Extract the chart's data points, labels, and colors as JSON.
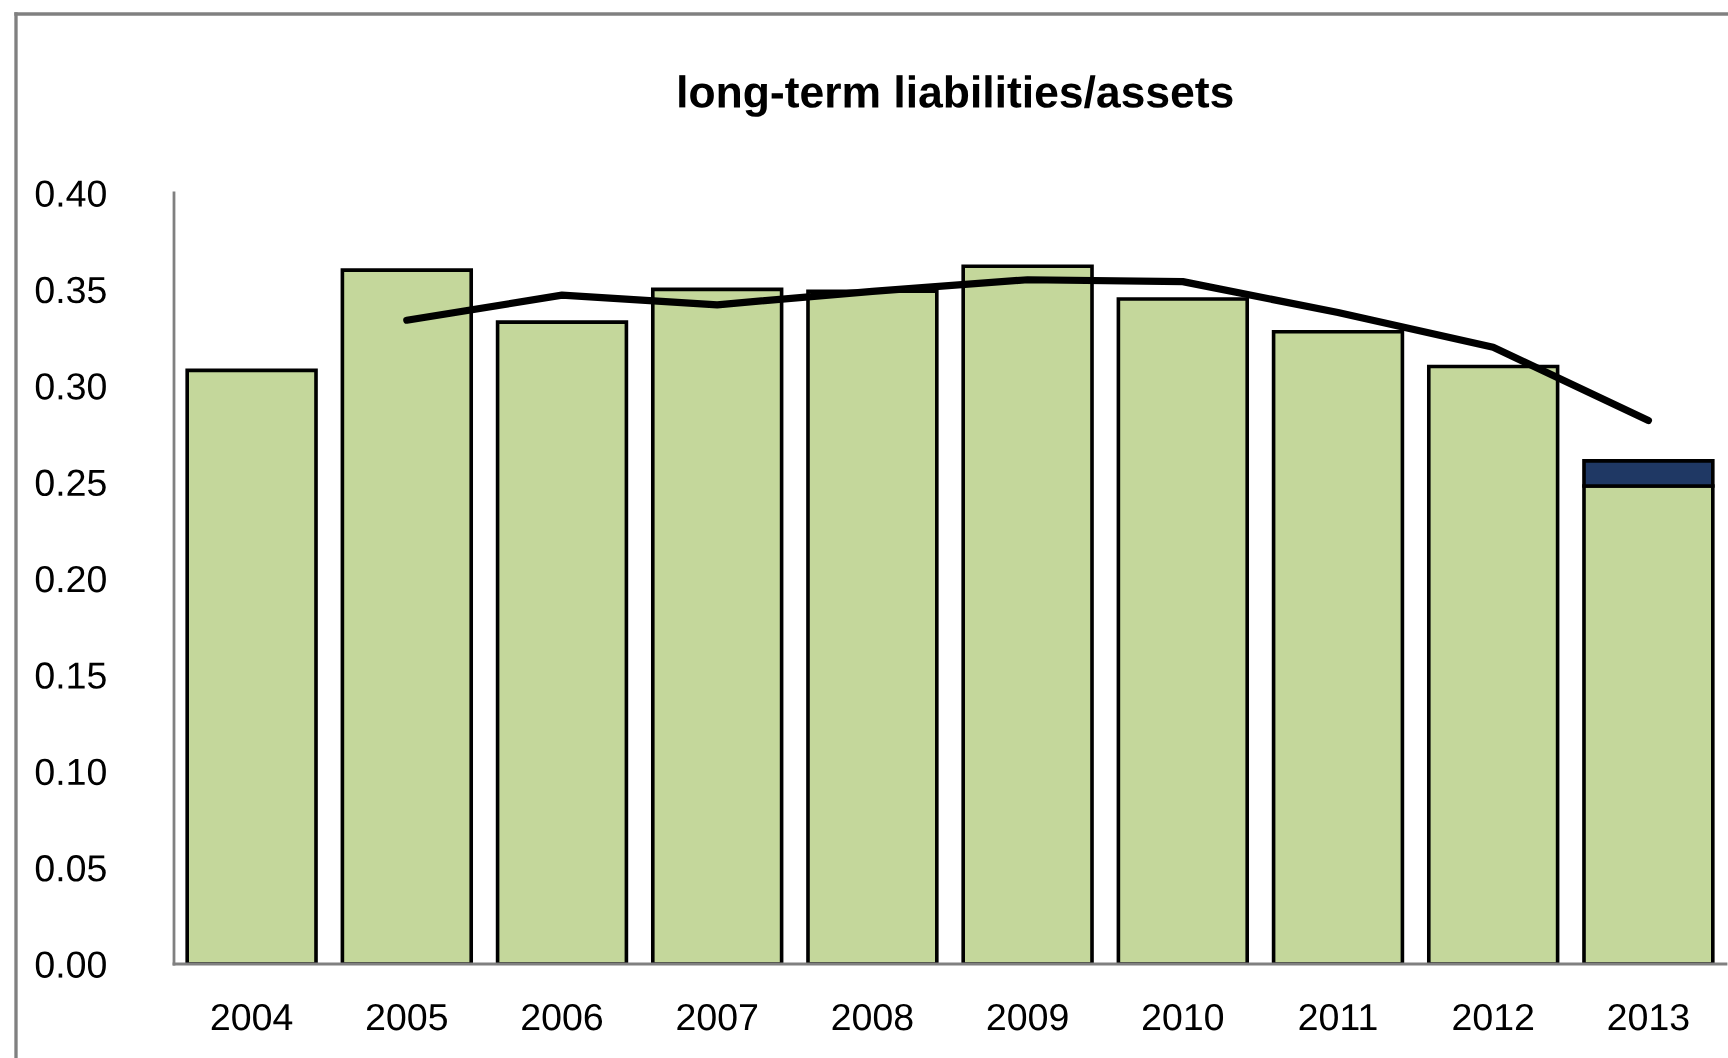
{
  "chart_data": {
    "type": "bar",
    "title": "long-term liabilities/assets",
    "categories": [
      "2004",
      "2005",
      "2006",
      "2007",
      "2008",
      "2009",
      "2010",
      "2011",
      "2012",
      "2013"
    ],
    "stacked": true,
    "series": [
      {
        "color": "#c4d79b",
        "values": [
          0.308,
          0.36,
          0.333,
          0.35,
          0.349,
          0.362,
          0.345,
          0.328,
          0.31,
          0.248
        ]
      },
      {
        "color": "#1f3864",
        "values": [
          null,
          null,
          null,
          null,
          null,
          null,
          null,
          null,
          null,
          0.013
        ]
      },
      {
        "type": "line",
        "color": "#000000",
        "values": [
          null,
          0.334,
          0.347,
          0.342,
          0.349,
          0.355,
          0.354,
          0.338,
          0.32,
          0.282
        ]
      }
    ],
    "ylim": [
      0,
      0.4
    ],
    "yticks": [
      {
        "value": 0,
        "label": "0.00"
      },
      {
        "value": 0.05,
        "label": "0.05"
      },
      {
        "value": 0.1,
        "label": "0.10"
      },
      {
        "value": 0.15,
        "label": "0.15"
      },
      {
        "value": 0.2,
        "label": "0.20"
      },
      {
        "value": 0.25,
        "label": "0.25"
      },
      {
        "value": 0.3,
        "label": "0.30"
      },
      {
        "value": 0.35,
        "label": "0.35"
      },
      {
        "value": 0.4,
        "label": "0.40"
      }
    ],
    "grid": false,
    "legend": false
  }
}
